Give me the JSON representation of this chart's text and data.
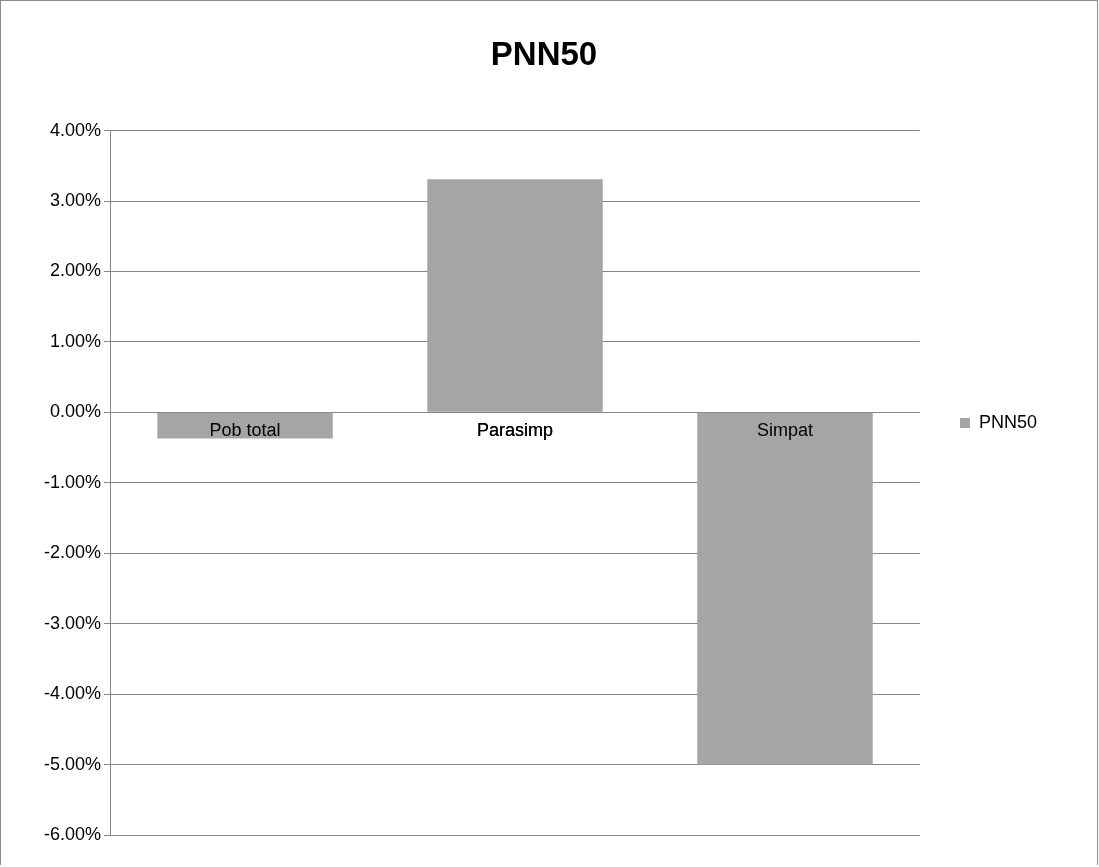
{
  "chart_data": {
    "type": "bar",
    "title": "PNN50",
    "categories": [
      "Pob total",
      "Parasimp",
      "Simpat"
    ],
    "series": [
      {
        "name": "PNN50",
        "color": "#a5a5a5",
        "values": [
          -0.37,
          3.31,
          -5.0
        ]
      }
    ],
    "ylim": [
      -6,
      4
    ],
    "yticks": [
      {
        "value": -6,
        "label": "-6.00%"
      },
      {
        "value": -5,
        "label": "-5.00%"
      },
      {
        "value": -4,
        "label": "-4.00%"
      },
      {
        "value": -3,
        "label": "-3.00%"
      },
      {
        "value": -2,
        "label": "-2.00%"
      },
      {
        "value": -1,
        "label": "-1.00%"
      },
      {
        "value": 0,
        "label": "0.00%"
      },
      {
        "value": 1,
        "label": "1.00%"
      },
      {
        "value": 2,
        "label": "2.00%"
      },
      {
        "value": 3,
        "label": "3.00%"
      },
      {
        "value": 4,
        "label": "4.00%"
      }
    ],
    "grid": "y",
    "legend": "right"
  }
}
